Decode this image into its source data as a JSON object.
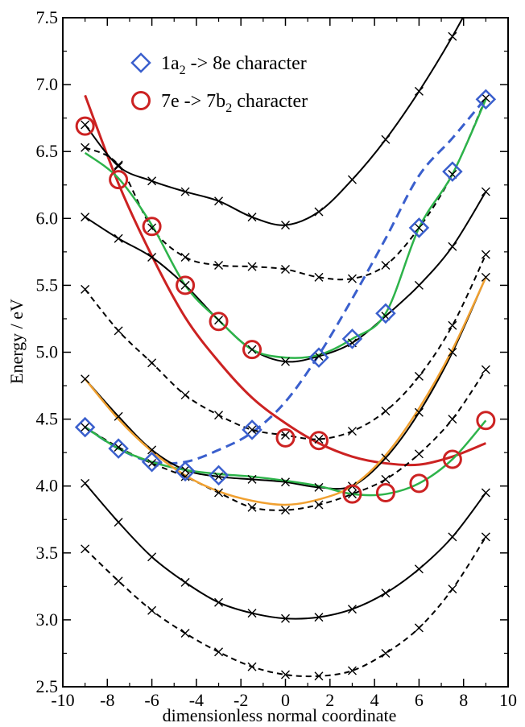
{
  "chart_data": {
    "type": "line",
    "xlabel": "dimensionless normal coordinate",
    "ylabel": "Energy / eV",
    "xlim": [
      -10,
      10
    ],
    "ylim": [
      2.5,
      7.5
    ],
    "x_ticks": [
      "-10",
      "-8",
      "-6",
      "-4",
      "-2",
      "0",
      "2",
      "4",
      "6",
      "8",
      "10"
    ],
    "y_ticks": [
      "2.5",
      "3.0",
      "3.5",
      "4.0",
      "4.5",
      "5.0",
      "5.5",
      "6.0",
      "6.5",
      "7.0",
      "7.5"
    ],
    "grid": false,
    "legend_position": "top-left",
    "legend": [
      {
        "label_main": "1a",
        "label_sub": "2",
        "label_rest": " -> 8e  character",
        "marker": "diamond",
        "color": "#3a5fcd"
      },
      {
        "label_main": "7e -> 7b",
        "label_sub": "2",
        "label_rest": "  character",
        "marker": "circle",
        "color": "#cc2222"
      }
    ],
    "x": [
      -9,
      -7.5,
      -6,
      -4.5,
      -3,
      -1.5,
      0,
      1.5,
      3,
      4.5,
      6,
      7.5,
      9
    ],
    "series": [
      {
        "style": "solid",
        "color": "#000000",
        "values": [
          4.02,
          3.73,
          3.47,
          3.28,
          3.13,
          3.05,
          3.01,
          3.02,
          3.08,
          3.2,
          3.38,
          3.62,
          3.95
        ]
      },
      {
        "style": "dashed",
        "color": "#000000",
        "values": [
          3.53,
          3.29,
          3.07,
          2.9,
          2.76,
          2.65,
          2.59,
          2.58,
          2.62,
          2.75,
          2.94,
          3.23,
          3.62
        ]
      },
      {
        "style": "solid",
        "color": "#000000",
        "values": [
          4.8,
          4.52,
          4.27,
          4.12,
          4.07,
          4.05,
          4.03,
          3.99,
          4.0,
          4.21,
          4.55,
          5.0,
          5.56
        ]
      },
      {
        "style": "dashed",
        "color": "#000000",
        "values": [
          4.44,
          4.29,
          4.17,
          4.07,
          3.95,
          3.84,
          3.82,
          3.86,
          3.94,
          4.05,
          4.24,
          4.5,
          4.87
        ]
      },
      {
        "style": "dashed",
        "color": "#000000",
        "values": [
          5.47,
          5.16,
          4.92,
          4.68,
          4.53,
          4.42,
          4.38,
          4.35,
          4.41,
          4.56,
          4.82,
          5.2,
          5.73
        ]
      },
      {
        "style": "solid",
        "color": "#000000",
        "values": [
          6.01,
          5.85,
          5.71,
          5.5,
          5.24,
          5.02,
          4.93,
          4.97,
          5.07,
          5.27,
          5.5,
          5.79,
          6.2
        ]
      },
      {
        "style": "dashed",
        "color": "#000000",
        "values": [
          6.53,
          6.4,
          5.93,
          5.71,
          5.65,
          5.64,
          5.62,
          5.56,
          5.55,
          5.65,
          5.93,
          6.33,
          6.9
        ]
      },
      {
        "style": "solid",
        "color": "#000000",
        "values": [
          6.7,
          6.39,
          6.28,
          6.2,
          6.13,
          6.01,
          5.95,
          6.05,
          6.29,
          6.59,
          6.95,
          7.36,
          7.82
        ]
      },
      {
        "style": "solid",
        "color": "#2db34a",
        "values": [
          6.49,
          6.3,
          5.95,
          5.5,
          5.24,
          5.02,
          4.96,
          4.98,
          5.1,
          5.29,
          5.93,
          6.33,
          6.89
        ]
      },
      {
        "style": "solid",
        "color": "#2db34a",
        "values": [
          4.44,
          4.28,
          4.18,
          4.12,
          4.09,
          4.07,
          4.04,
          4.0,
          3.94,
          3.94,
          4.02,
          4.2,
          4.49
        ]
      },
      {
        "style": "solid",
        "color": "#f0a030",
        "values": [
          4.8,
          4.5,
          4.26,
          4.08,
          3.96,
          3.89,
          3.86,
          3.9,
          4.0,
          4.23,
          4.58,
          5.02,
          5.56
        ]
      }
    ],
    "fits": [
      {
        "marker": "circle",
        "style": "solid",
        "color": "#cc2222",
        "x": [
          -9,
          -7.5,
          -6,
          -4.5,
          -3,
          -1.5,
          0,
          1.5,
          3,
          4.5,
          6,
          7.5,
          9
        ],
        "values": [
          6.92,
          6.26,
          5.72,
          5.26,
          4.93,
          4.66,
          4.47,
          4.32,
          4.22,
          4.17,
          4.16,
          4.22,
          4.32
        ]
      },
      {
        "marker": "diamond",
        "style": "dashed",
        "color": "#3a5fcd",
        "x": [
          -9,
          -7.5,
          -6,
          -4.5,
          -3,
          -1.5,
          0,
          1.5,
          3,
          4.5,
          6,
          7.5,
          9
        ],
        "values": [
          4.44,
          4.28,
          4.18,
          4.18,
          4.27,
          4.4,
          4.63,
          4.98,
          5.4,
          5.85,
          6.32,
          6.6,
          6.9
        ]
      }
    ],
    "diamond_points": [
      {
        "x": -9,
        "y": 4.44
      },
      {
        "x": -7.5,
        "y": 4.28
      },
      {
        "x": -6,
        "y": 4.18
      },
      {
        "x": -4.5,
        "y": 4.11
      },
      {
        "x": -3,
        "y": 4.08
      },
      {
        "x": -1.5,
        "y": 4.42
      },
      {
        "x": 1.5,
        "y": 4.96
      },
      {
        "x": 3,
        "y": 5.1
      },
      {
        "x": 4.5,
        "y": 5.29
      },
      {
        "x": 6,
        "y": 5.93
      },
      {
        "x": 7.5,
        "y": 6.35
      },
      {
        "x": 9,
        "y": 6.89
      }
    ],
    "circle_points": [
      {
        "x": -9,
        "y": 6.69
      },
      {
        "x": -7.5,
        "y": 6.29
      },
      {
        "x": -6,
        "y": 5.94
      },
      {
        "x": -4.5,
        "y": 5.5
      },
      {
        "x": -3,
        "y": 5.23
      },
      {
        "x": -1.5,
        "y": 5.02
      },
      {
        "x": 0,
        "y": 4.36
      },
      {
        "x": 1.5,
        "y": 4.34
      },
      {
        "x": 3,
        "y": 3.94
      },
      {
        "x": 4.5,
        "y": 3.95
      },
      {
        "x": 6,
        "y": 4.02
      },
      {
        "x": 7.5,
        "y": 4.2
      },
      {
        "x": 9,
        "y": 4.49
      }
    ]
  }
}
